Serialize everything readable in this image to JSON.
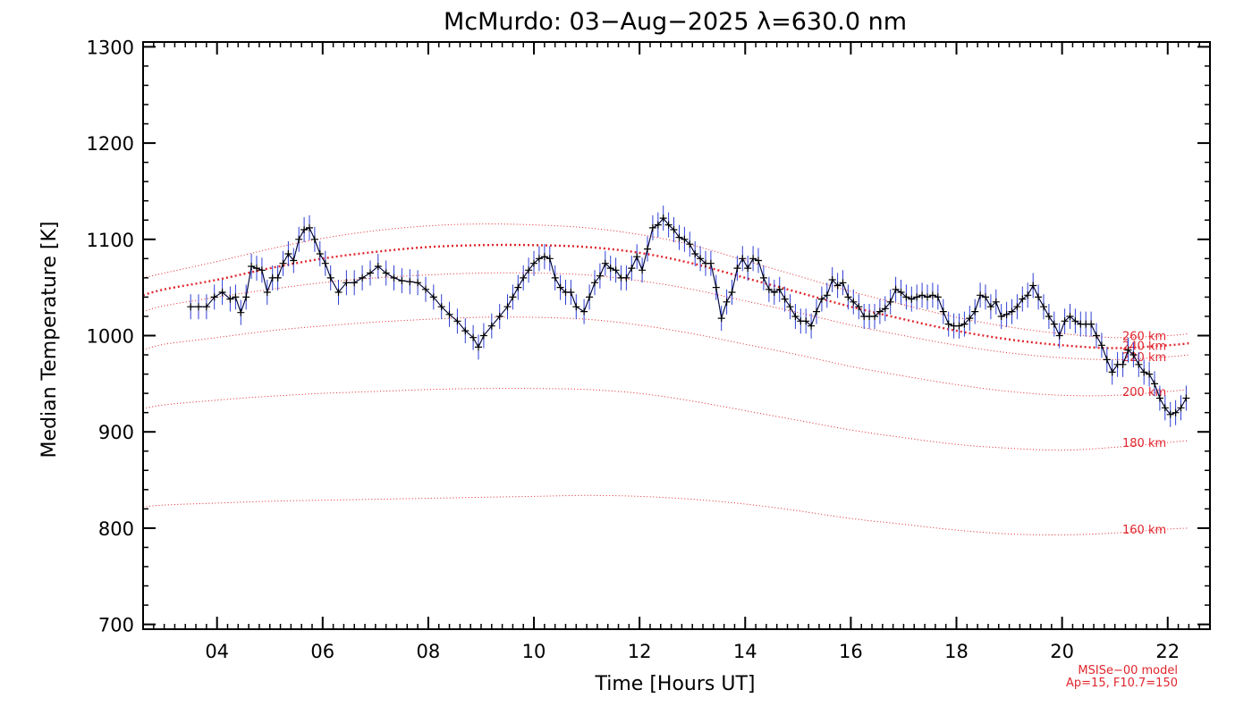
{
  "chart_data": {
    "type": "line",
    "title": "McMurdo: 03−Aug−2025 λ=630.0 nm",
    "xlabel": "Time [Hours UT]",
    "ylabel": "Median Temperature [K]",
    "xlim": [
      2.6,
      22.8
    ],
    "ylim": [
      695,
      1305
    ],
    "x_ticks": [
      4,
      6,
      8,
      10,
      12,
      14,
      16,
      18,
      20,
      22
    ],
    "x_tick_labels": [
      "04",
      "06",
      "08",
      "10",
      "12",
      "14",
      "16",
      "18",
      "20",
      "22"
    ],
    "y_ticks": [
      700,
      800,
      900,
      1000,
      1100,
      1200,
      1300
    ],
    "y_tick_labels": [
      "700",
      "800",
      "900",
      "1000",
      "1100",
      "1200",
      "1300"
    ],
    "grid": false,
    "measured": {
      "color": "#000000",
      "errorbar_color": "#2f3fd6",
      "errorbar_halfwidth_K": 13,
      "points": [
        [
          3.5,
          1030
        ],
        [
          3.65,
          1030
        ],
        [
          3.8,
          1030
        ],
        [
          3.95,
          1040
        ],
        [
          4.1,
          1045
        ],
        [
          4.25,
          1038
        ],
        [
          4.35,
          1040
        ],
        [
          4.45,
          1024
        ],
        [
          4.55,
          1040
        ],
        [
          4.65,
          1072
        ],
        [
          4.75,
          1070
        ],
        [
          4.85,
          1068
        ],
        [
          4.95,
          1045
        ],
        [
          5.05,
          1060
        ],
        [
          5.15,
          1060
        ],
        [
          5.25,
          1075
        ],
        [
          5.35,
          1085
        ],
        [
          5.45,
          1078
        ],
        [
          5.55,
          1100
        ],
        [
          5.65,
          1110
        ],
        [
          5.75,
          1112
        ],
        [
          5.85,
          1100
        ],
        [
          5.95,
          1085
        ],
        [
          6.05,
          1075
        ],
        [
          6.15,
          1060
        ],
        [
          6.3,
          1045
        ],
        [
          6.45,
          1055
        ],
        [
          6.6,
          1055
        ],
        [
          6.75,
          1060
        ],
        [
          6.9,
          1065
        ],
        [
          7.05,
          1072
        ],
        [
          7.2,
          1065
        ],
        [
          7.35,
          1060
        ],
        [
          7.5,
          1057
        ],
        [
          7.65,
          1056
        ],
        [
          7.8,
          1055
        ],
        [
          7.95,
          1048
        ],
        [
          8.1,
          1040
        ],
        [
          8.25,
          1030
        ],
        [
          8.4,
          1022
        ],
        [
          8.55,
          1015
        ],
        [
          8.7,
          1005
        ],
        [
          8.85,
          998
        ],
        [
          8.95,
          988
        ],
        [
          9.05,
          1000
        ],
        [
          9.2,
          1010
        ],
        [
          9.35,
          1020
        ],
        [
          9.5,
          1030
        ],
        [
          9.6,
          1040
        ],
        [
          9.7,
          1050
        ],
        [
          9.8,
          1060
        ],
        [
          9.9,
          1068
        ],
        [
          10.0,
          1075
        ],
        [
          10.1,
          1080
        ],
        [
          10.2,
          1082
        ],
        [
          10.3,
          1080
        ],
        [
          10.4,
          1060
        ],
        [
          10.5,
          1050
        ],
        [
          10.6,
          1045
        ],
        [
          10.7,
          1045
        ],
        [
          10.8,
          1030
        ],
        [
          10.95,
          1025
        ],
        [
          11.05,
          1040
        ],
        [
          11.15,
          1055
        ],
        [
          11.25,
          1062
        ],
        [
          11.35,
          1075
        ],
        [
          11.45,
          1070
        ],
        [
          11.55,
          1068
        ],
        [
          11.65,
          1060
        ],
        [
          11.75,
          1060
        ],
        [
          11.85,
          1070
        ],
        [
          11.95,
          1082
        ],
        [
          12.05,
          1068
        ],
        [
          12.15,
          1090
        ],
        [
          12.25,
          1112
        ],
        [
          12.35,
          1115
        ],
        [
          12.45,
          1122
        ],
        [
          12.55,
          1115
        ],
        [
          12.65,
          1110
        ],
        [
          12.75,
          1102
        ],
        [
          12.85,
          1100
        ],
        [
          12.95,
          1095
        ],
        [
          13.05,
          1085
        ],
        [
          13.15,
          1080
        ],
        [
          13.25,
          1075
        ],
        [
          13.35,
          1075
        ],
        [
          13.45,
          1050
        ],
        [
          13.55,
          1018
        ],
        [
          13.65,
          1035
        ],
        [
          13.75,
          1045
        ],
        [
          13.85,
          1070
        ],
        [
          13.95,
          1080
        ],
        [
          14.05,
          1070
        ],
        [
          14.15,
          1080
        ],
        [
          14.25,
          1078
        ],
        [
          14.35,
          1060
        ],
        [
          14.45,
          1048
        ],
        [
          14.55,
          1045
        ],
        [
          14.65,
          1048
        ],
        [
          14.75,
          1038
        ],
        [
          14.85,
          1030
        ],
        [
          14.95,
          1020
        ],
        [
          15.05,
          1015
        ],
        [
          15.15,
          1015
        ],
        [
          15.25,
          1010
        ],
        [
          15.35,
          1025
        ],
        [
          15.45,
          1038
        ],
        [
          15.55,
          1042
        ],
        [
          15.65,
          1058
        ],
        [
          15.75,
          1052
        ],
        [
          15.85,
          1055
        ],
        [
          15.95,
          1040
        ],
        [
          16.05,
          1035
        ],
        [
          16.15,
          1030
        ],
        [
          16.25,
          1020
        ],
        [
          16.35,
          1020
        ],
        [
          16.45,
          1020
        ],
        [
          16.55,
          1025
        ],
        [
          16.65,
          1028
        ],
        [
          16.75,
          1035
        ],
        [
          16.85,
          1048
        ],
        [
          16.95,
          1045
        ],
        [
          17.05,
          1040
        ],
        [
          17.15,
          1038
        ],
        [
          17.25,
          1040
        ],
        [
          17.35,
          1042
        ],
        [
          17.45,
          1040
        ],
        [
          17.55,
          1042
        ],
        [
          17.65,
          1040
        ],
        [
          17.75,
          1025
        ],
        [
          17.85,
          1012
        ],
        [
          17.95,
          1010
        ],
        [
          18.05,
          1010
        ],
        [
          18.15,
          1012
        ],
        [
          18.25,
          1018
        ],
        [
          18.35,
          1025
        ],
        [
          18.45,
          1042
        ],
        [
          18.55,
          1040
        ],
        [
          18.65,
          1030
        ],
        [
          18.75,
          1035
        ],
        [
          18.85,
          1020
        ],
        [
          18.95,
          1022
        ],
        [
          19.05,
          1025
        ],
        [
          19.15,
          1030
        ],
        [
          19.25,
          1038
        ],
        [
          19.35,
          1042
        ],
        [
          19.45,
          1052
        ],
        [
          19.55,
          1040
        ],
        [
          19.65,
          1030
        ],
        [
          19.75,
          1020
        ],
        [
          19.85,
          1012
        ],
        [
          19.95,
          1000
        ],
        [
          20.05,
          1015
        ],
        [
          20.15,
          1020
        ],
        [
          20.25,
          1015
        ],
        [
          20.35,
          1012
        ],
        [
          20.45,
          1012
        ],
        [
          20.55,
          1012
        ],
        [
          20.65,
          1000
        ],
        [
          20.75,
          990
        ],
        [
          20.85,
          975
        ],
        [
          20.95,
          962
        ],
        [
          21.05,
          970
        ],
        [
          21.15,
          970
        ],
        [
          21.25,
          985
        ],
        [
          21.35,
          980
        ],
        [
          21.45,
          970
        ],
        [
          21.55,
          962
        ],
        [
          21.65,
          960
        ],
        [
          21.75,
          950
        ],
        [
          21.85,
          935
        ],
        [
          21.95,
          925
        ],
        [
          22.05,
          918
        ],
        [
          22.15,
          920
        ],
        [
          22.25,
          925
        ],
        [
          22.35,
          935
        ]
      ]
    },
    "model": {
      "name": "MSISe−00 model",
      "parameters": "Ap=15, F10.7=150",
      "color": "#e0262d",
      "x": [
        2.6,
        3.0,
        4.0,
        5.0,
        6.0,
        7.0,
        8.0,
        9.0,
        10.0,
        11.0,
        12.0,
        13.0,
        14.0,
        15.0,
        16.0,
        17.0,
        18.0,
        19.0,
        20.0,
        21.0,
        22.0,
        22.4
      ],
      "altitudes": [
        {
          "label": "160 km",
          "values": [
            822,
            824,
            826,
            828,
            829,
            830,
            831,
            832,
            833,
            834,
            833,
            830,
            825,
            818,
            810,
            804,
            798,
            794,
            793,
            795,
            799,
            800
          ]
        },
        {
          "label": "180 km",
          "values": [
            924,
            928,
            933,
            937,
            940,
            942,
            944,
            945,
            945,
            944,
            940,
            932,
            922,
            912,
            902,
            894,
            887,
            883,
            881,
            884,
            889,
            891
          ]
        },
        {
          "label": "200 km",
          "values": [
            985,
            991,
            998,
            1005,
            1010,
            1014,
            1017,
            1019,
            1019,
            1017,
            1011,
            1002,
            991,
            980,
            968,
            958,
            949,
            942,
            938,
            938,
            942,
            944
          ]
        },
        {
          "label": "220 km",
          "values": [
            1025,
            1031,
            1040,
            1048,
            1055,
            1060,
            1063,
            1065,
            1065,
            1063,
            1057,
            1048,
            1036,
            1024,
            1011,
            1000,
            990,
            982,
            977,
            975,
            978,
            980
          ]
        },
        {
          "label": "240 km",
          "values": [
            1042,
            1048,
            1058,
            1070,
            1080,
            1087,
            1092,
            1094,
            1094,
            1092,
            1086,
            1075,
            1060,
            1045,
            1030,
            1017,
            1005,
            996,
            990,
            987,
            990,
            992
          ]
        },
        {
          "label": "260 km",
          "values": [
            1060,
            1065,
            1077,
            1090,
            1101,
            1109,
            1114,
            1116,
            1115,
            1112,
            1105,
            1094,
            1078,
            1062,
            1046,
            1032,
            1019,
            1009,
            1002,
            998,
            1000,
            1002
          ]
        }
      ],
      "emphasized": "240 km"
    }
  }
}
